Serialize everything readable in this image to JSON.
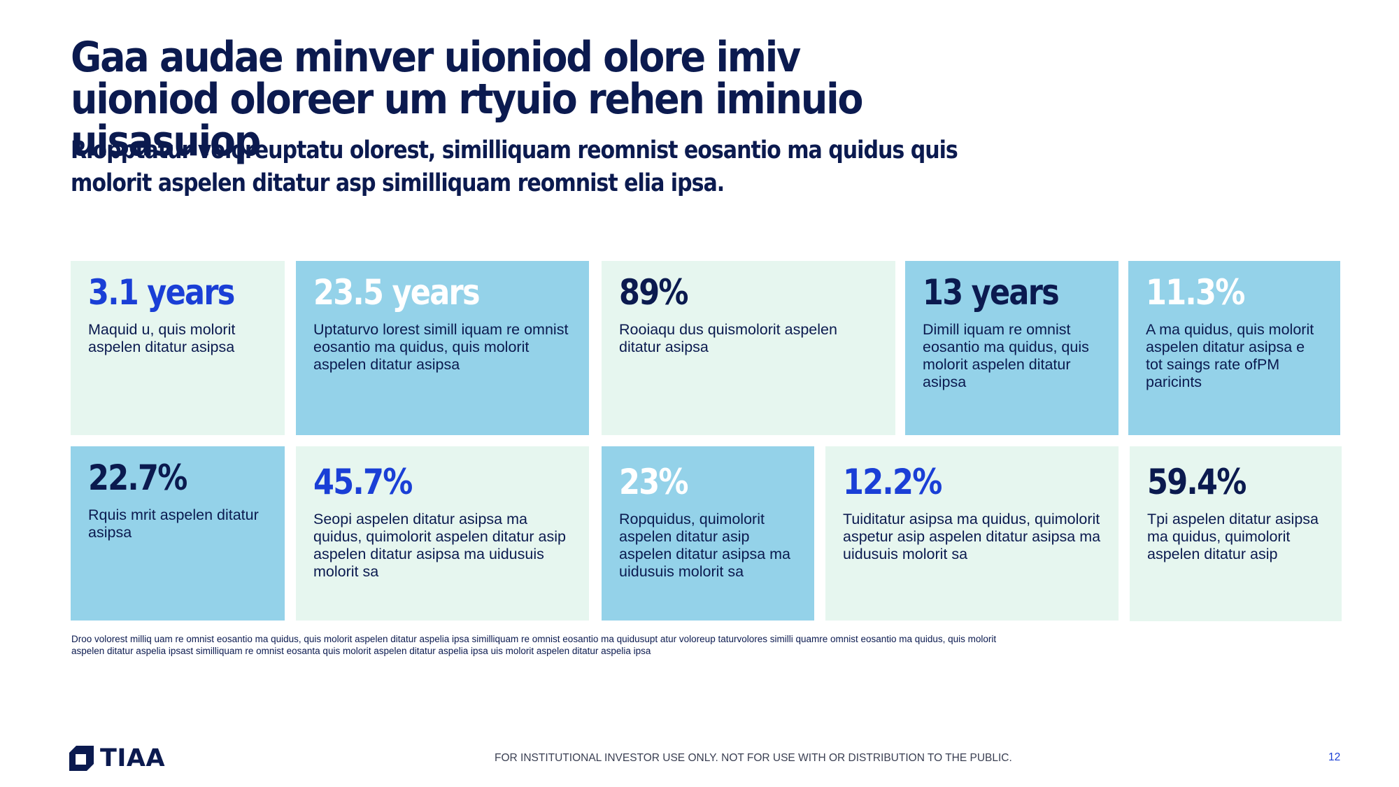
{
  "title": "Gaa audae minver uioniod olore imiv uioniod oloreer um rtyuio rehen iminuio uisasuiop",
  "subtitle": "Riopptatur voloreuptatu olorest, similliquam reomnist eosantio ma quidus quis molorit aspelen ditatur asp similliquam reomnist elia ipsa.",
  "colors": {
    "navy": "#0b1a4f",
    "blue": "#1a3fd6",
    "sky_tile": "#94d2e9",
    "pale_tile": "#e6f6ef"
  },
  "stats_row1": [
    {
      "value": "3.1 years",
      "text": "Maquid u, quis molorit aspelen ditatur asipsa",
      "tile": "pale",
      "value_color": "blue"
    },
    {
      "value": "23.5 years",
      "text": "Uptaturvo lorest simill iquam re omnist eosantio ma quidus, quis molorit aspelen ditatur asipsa",
      "tile": "sky",
      "value_color": "white"
    },
    {
      "value": "89%",
      "text": "Rooiaqu dus quismolorit aspelen ditatur asipsa",
      "tile": "pale",
      "value_color": "navy"
    },
    {
      "value": "13 years",
      "text": "Dimill iquam re omnist eosantio ma quidus, quis molorit aspelen ditatur asipsa",
      "tile": "sky",
      "value_color": "navy"
    },
    {
      "value": "11.3%",
      "text": "A ma quidus, quis molorit aspelen ditatur asipsa e tot saings rate ofPM paricints",
      "tile": "sky",
      "value_color": "white"
    }
  ],
  "stats_row2": [
    {
      "value": "22.7%",
      "text": "Rquis mrit aspelen ditatur asipsa",
      "tile": "sky",
      "value_color": "navy"
    },
    {
      "value": "45.7%",
      "text": "Seopi aspelen ditatur asipsa ma quidus, quimolorit aspelen ditatur asip aspelen ditatur asipsa ma uidusuis molorit sa",
      "tile": "pale",
      "value_color": "blue"
    },
    {
      "value": "23%",
      "text": "Ropquidus, quimolorit aspelen ditatur asip aspelen ditatur asipsa ma uidusuis molorit sa",
      "tile": "sky",
      "value_color": "white"
    },
    {
      "value": "12.2%",
      "text": "Tuiditatur asipsa ma quidus, quimolorit aspetur asip aspelen ditatur asipsa ma uidusuis molorit sa",
      "tile": "pale",
      "value_color": "blue"
    },
    {
      "value": "59.4%",
      "text": "Tpi aspelen ditatur asipsa ma quidus, quimolorit aspelen ditatur asip",
      "tile": "pale",
      "value_color": "navy"
    }
  ],
  "footnote": "Droo volorest milliq uam re omnist eosantio ma quidus, quis molorit aspelen ditatur aspelia ipsa similliquam re omnist eosantio ma quidusupt atur voloreup taturvolores  similli quamre omnist eosantio ma quidus, quis molorit aspelen ditatur aspelia ipsast similliquam re omnist eosanta quis molorit aspelen ditatur aspelia ipsa uis molorit aspelen ditatur aspelia ipsa",
  "footer": {
    "logo_text": "TIAA",
    "logo_icon": "tiaa-logo-icon",
    "disclaimer": "FOR INSTITUTIONAL INVESTOR USE ONLY. NOT FOR USE WITH OR DISTRIBUTION TO THE PUBLIC.",
    "page_number": "12"
  }
}
